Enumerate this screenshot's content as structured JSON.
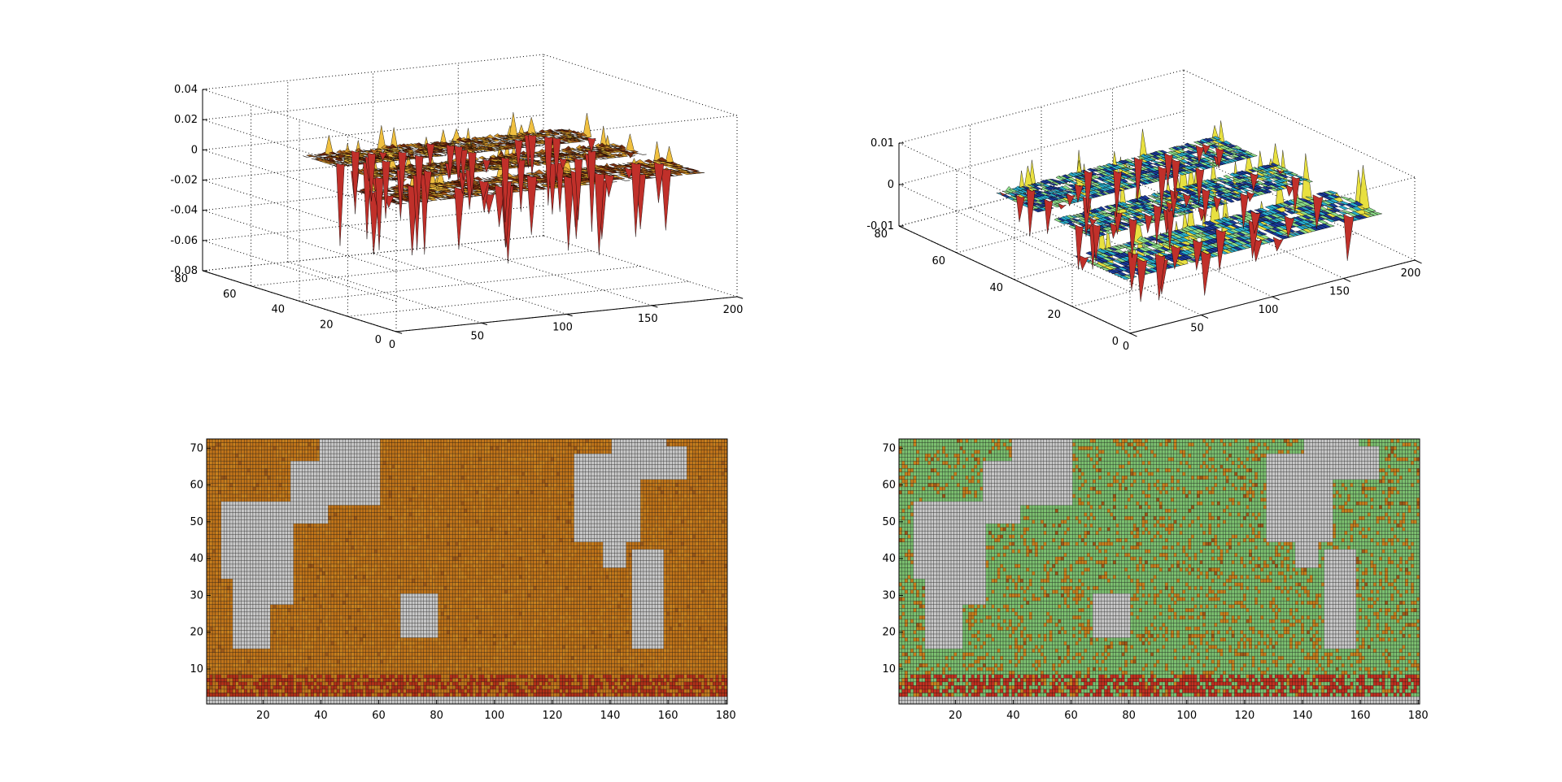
{
  "figure": {
    "background": "#ffffff",
    "axis_color": "#000000",
    "grid_style": "dotted",
    "land_color": "#c8c8c8"
  },
  "chart_data": [
    {
      "id": "surf-left",
      "type": "surface3d",
      "title": "",
      "xlabel": "",
      "ylabel": "",
      "zlabel": "",
      "xlim": [
        0,
        200
      ],
      "ylim": [
        0,
        80
      ],
      "zlim": [
        -0.08,
        0.04
      ],
      "x_ticks": [
        "0",
        "50",
        "100",
        "150",
        "200"
      ],
      "y_ticks": [
        "0",
        "20",
        "40",
        "60",
        "80"
      ],
      "z_ticks": [
        "-0.08",
        "-0.06",
        "-0.04",
        "-0.02",
        "0",
        "0.02",
        "0.04"
      ],
      "grid": true,
      "colormap": [
        "#7a2e10",
        "#b5651d",
        "#d99a2b",
        "#f0c040",
        "#c0302a"
      ],
      "description_values": {
        "z_typical": 0,
        "z_min_spike": -0.055,
        "z_max_spike": 0.018
      }
    },
    {
      "id": "surf-right",
      "type": "surface3d",
      "title": "",
      "xlabel": "",
      "ylabel": "",
      "zlabel": "",
      "xlim": [
        0,
        200
      ],
      "ylim": [
        0,
        80
      ],
      "zlim": [
        -0.01,
        0.01
      ],
      "x_ticks": [
        "0",
        "50",
        "100",
        "150",
        "200"
      ],
      "y_ticks": [
        "0",
        "20",
        "40",
        "60",
        "80"
      ],
      "z_ticks": [
        "-0.01",
        "0",
        "0.01"
      ],
      "grid": true,
      "colormap": [
        "#1a3a9a",
        "#2ab0d0",
        "#8ee08a",
        "#e8e040",
        "#c0302a"
      ],
      "description_values": {
        "z_typical": 0,
        "z_min_spike": -0.012,
        "z_max_spike": 0.011
      }
    },
    {
      "id": "map-left",
      "type": "heatmap",
      "title": "",
      "xlabel": "",
      "ylabel": "",
      "xlim": [
        1,
        180
      ],
      "ylim": [
        1,
        72
      ],
      "x_ticks": [
        "20",
        "40",
        "60",
        "80",
        "100",
        "120",
        "140",
        "160",
        "180"
      ],
      "y_ticks": [
        "10",
        "20",
        "30",
        "40",
        "50",
        "60",
        "70"
      ],
      "grid": true,
      "ocean_color": "#c0741a",
      "band_color": "#b03018",
      "band_rows": [
        3,
        8
      ]
    },
    {
      "id": "map-right",
      "type": "heatmap",
      "title": "",
      "xlabel": "",
      "ylabel": "",
      "xlim": [
        1,
        180
      ],
      "ylim": [
        1,
        72
      ],
      "x_ticks": [
        "20",
        "40",
        "60",
        "80",
        "100",
        "120",
        "140",
        "160",
        "180"
      ],
      "y_ticks": [
        "10",
        "20",
        "30",
        "40",
        "50",
        "60",
        "70"
      ],
      "grid": true,
      "ocean_color": "#7cc070",
      "band_color": "#c03020",
      "band_rows": [
        3,
        8
      ]
    }
  ]
}
